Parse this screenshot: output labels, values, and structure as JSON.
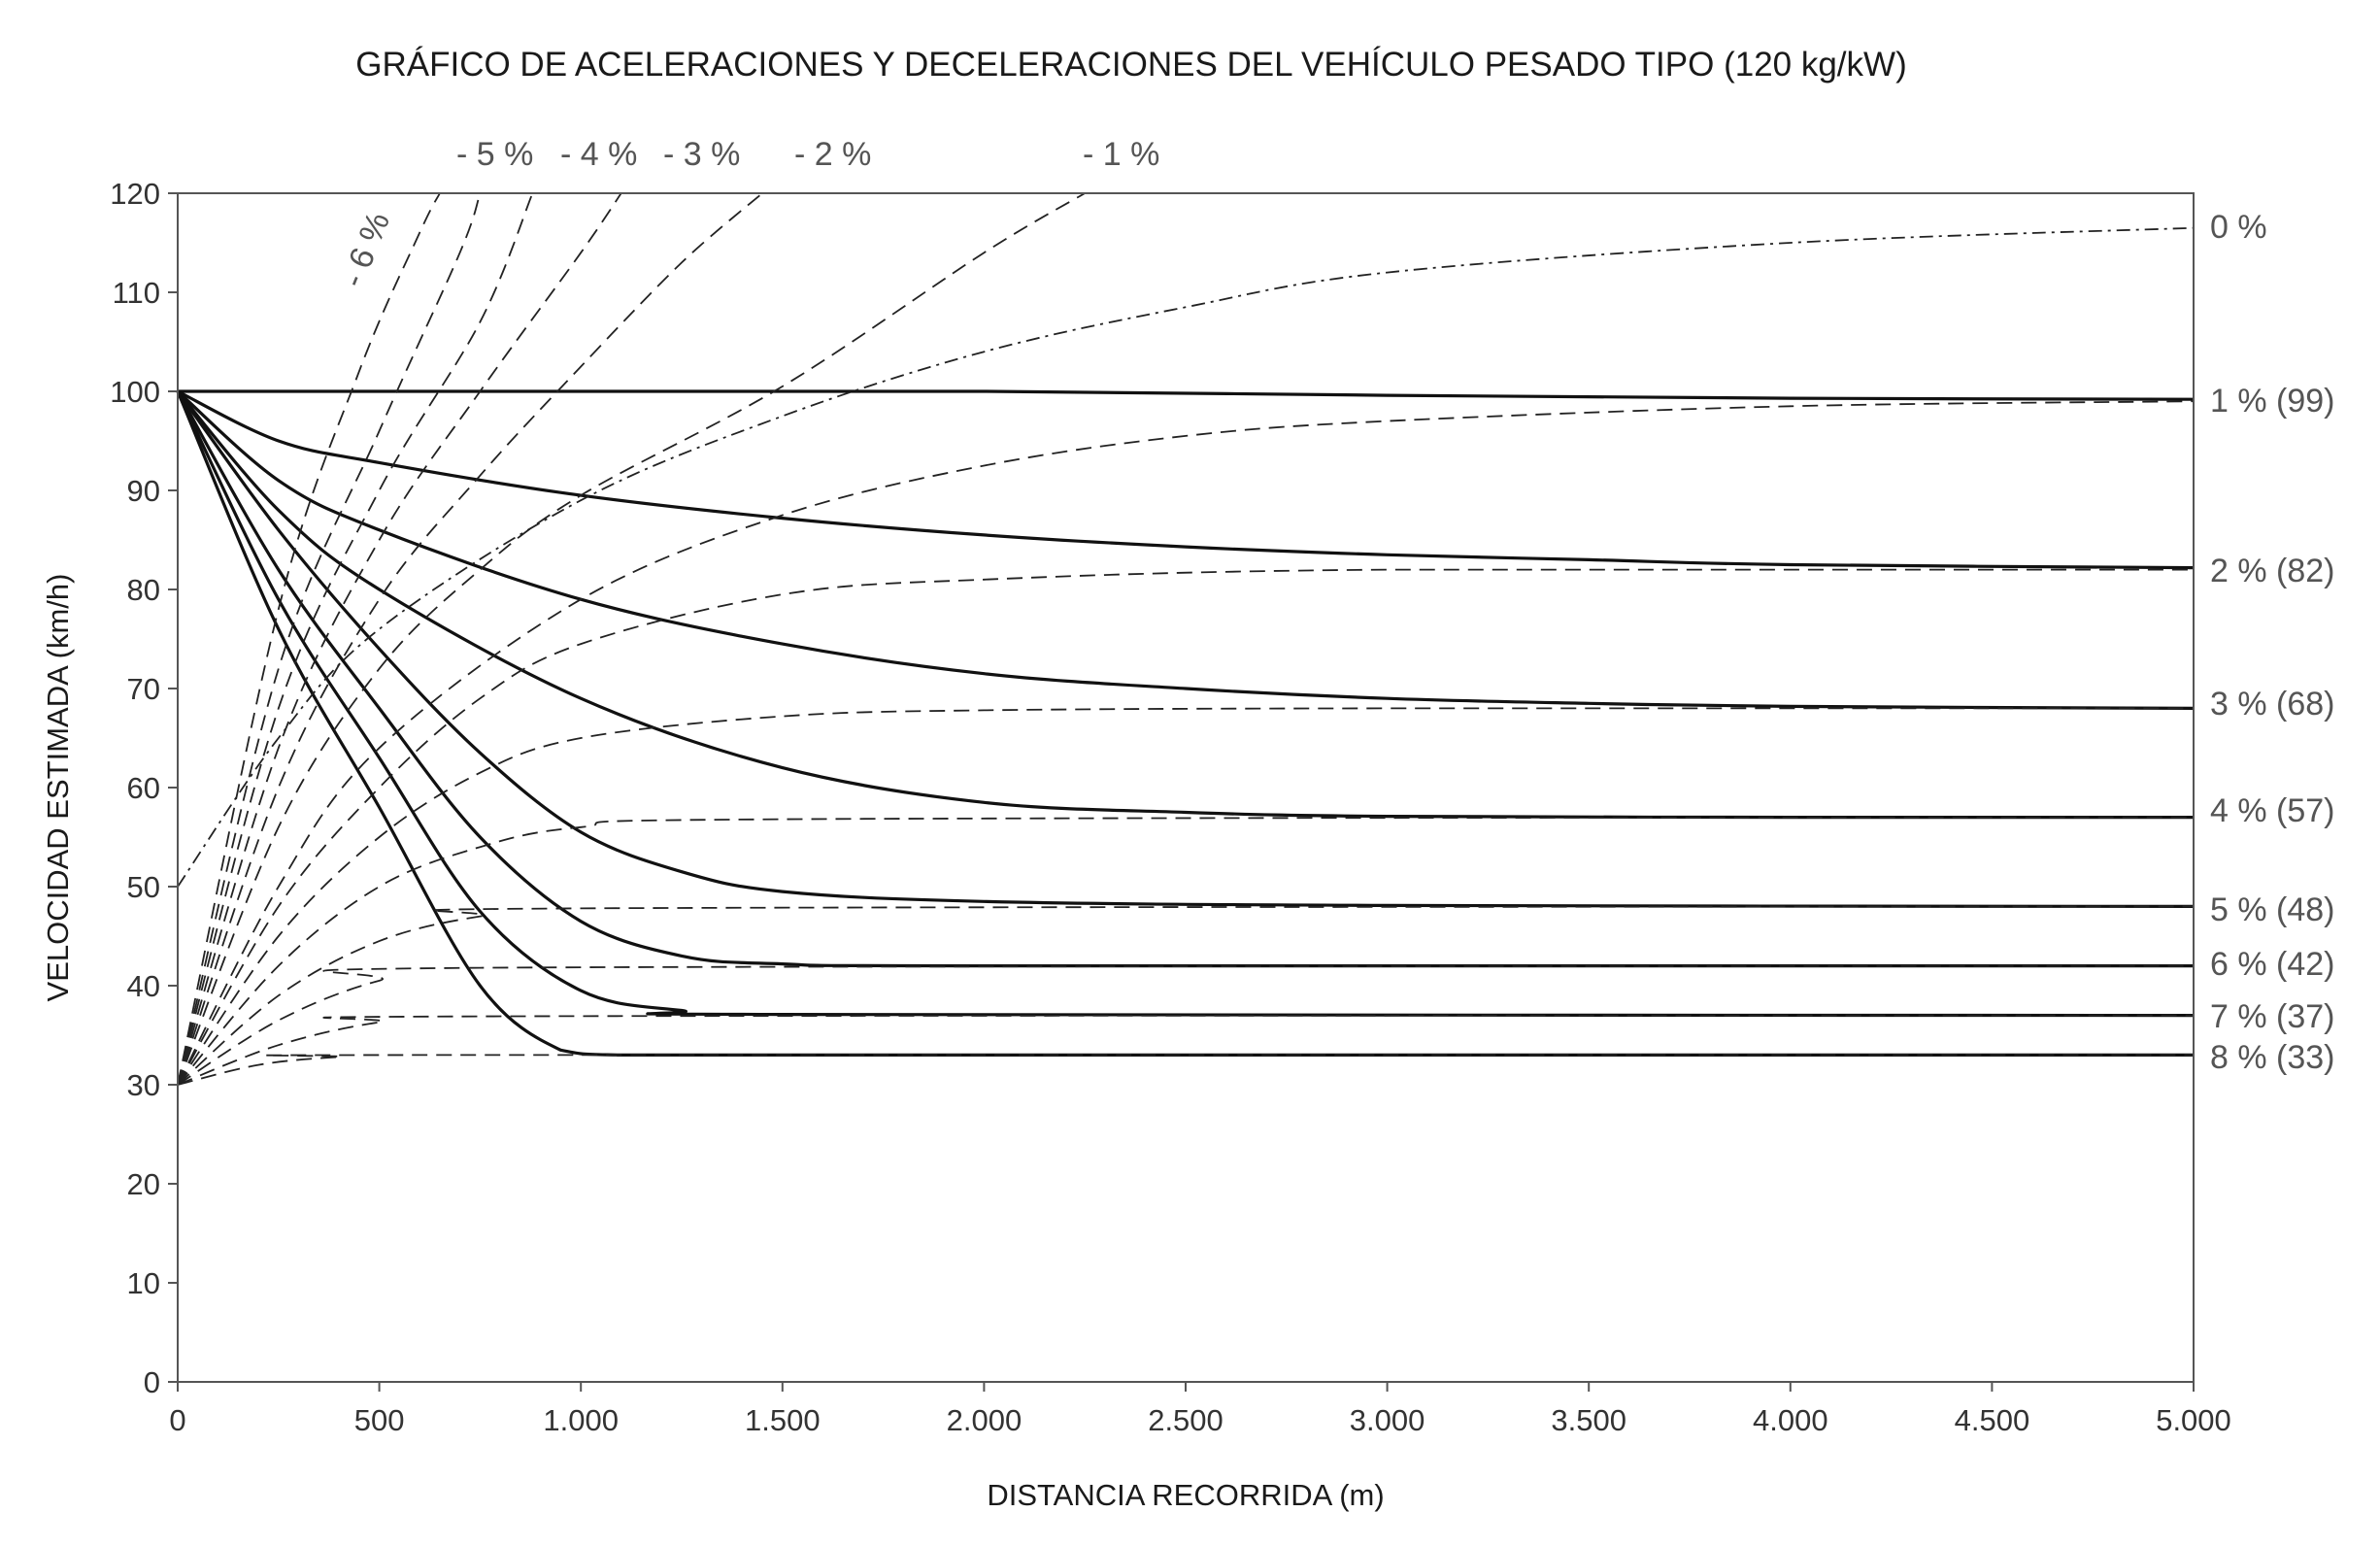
{
  "chart_data": {
    "type": "line",
    "title": "GRÁFICO DE ACELERACIONES Y DECELERACIONES DEL VEHÍCULO PESADO TIPO (120 kg/kW)",
    "xlabel": "DISTANCIA RECORRIDA (m)",
    "ylabel": "VELOCIDAD ESTIMADA (km/h)",
    "xlim": [
      0,
      5000
    ],
    "ylim": [
      0,
      120
    ],
    "x_ticks": [
      0,
      500,
      1000,
      1500,
      2000,
      2500,
      3000,
      3500,
      4000,
      4500,
      5000
    ],
    "x_tick_labels": [
      "0",
      "500",
      "1.000",
      "1.500",
      "2.000",
      "2.500",
      "3.000",
      "3.500",
      "4.000",
      "4.500",
      "5.000"
    ],
    "y_ticks": [
      0,
      10,
      20,
      30,
      40,
      50,
      60,
      70,
      80,
      90,
      100,
      110,
      120
    ],
    "y_tick_labels": [
      "0",
      "10",
      "20",
      "30",
      "40",
      "50",
      "60",
      "70",
      "80",
      "90",
      "100",
      "110",
      "120"
    ],
    "grid": false,
    "legend": "none",
    "series": [
      {
        "label": "1 % (99)",
        "style": "solid",
        "start_speed": 100,
        "equilibrium": 99,
        "x": [
          0,
          500,
          1000,
          2000,
          3000,
          4000,
          5000
        ],
        "y": [
          100,
          100,
          100,
          100,
          99.6,
          99.3,
          99.2
        ]
      },
      {
        "label": "2 % (82)",
        "style": "solid",
        "start_speed": 100,
        "equilibrium": 82,
        "x": [
          0,
          250,
          500,
          1000,
          1500,
          2000,
          2500,
          3000,
          3500,
          4000,
          5000
        ],
        "y": [
          100,
          95,
          92.8,
          89.5,
          87.2,
          85.5,
          84.3,
          83.5,
          83,
          82.5,
          82.2
        ]
      },
      {
        "label": "3 % (68)",
        "style": "solid",
        "start_speed": 100,
        "equilibrium": 68,
        "x": [
          0,
          250,
          500,
          1000,
          1500,
          2000,
          2500,
          3000,
          3500,
          4000,
          5000
        ],
        "y": [
          100,
          91,
          86,
          79,
          74.5,
          71.5,
          70,
          69,
          68.5,
          68.2,
          68
        ]
      },
      {
        "label": "4 % (57)",
        "style": "solid",
        "start_speed": 100,
        "equilibrium": 57,
        "x": [
          0,
          250,
          500,
          1000,
          1500,
          2000,
          2500,
          3000,
          4000,
          5000
        ],
        "y": [
          100,
          88,
          80,
          69,
          62,
          58.5,
          57.5,
          57.1,
          57,
          57
        ]
      },
      {
        "label": "5 % (48)",
        "style": "solid",
        "start_speed": 100,
        "equilibrium": 48,
        "x": [
          0,
          250,
          500,
          750,
          1000,
          1250,
          1500,
          2000,
          3000,
          5000
        ],
        "y": [
          100,
          86,
          74,
          63.5,
          55.5,
          51.5,
          49.5,
          48.5,
          48.1,
          48
        ]
      },
      {
        "label": "6 % (42)",
        "style": "solid",
        "start_speed": 100,
        "equilibrium": 42,
        "x": [
          0,
          250,
          500,
          750,
          1000,
          1250,
          1500,
          2000,
          5000
        ],
        "y": [
          100,
          82,
          68,
          55,
          46.5,
          43,
          42.2,
          42,
          42
        ]
      },
      {
        "label": "7 % (37)",
        "style": "solid",
        "start_speed": 100,
        "equilibrium": 37,
        "x": [
          0,
          250,
          500,
          750,
          1000,
          1250,
          1500,
          5000
        ],
        "y": [
          100,
          79,
          63,
          47.5,
          39.5,
          37.5,
          37.1,
          37
        ]
      },
      {
        "label": "8 % (33)",
        "style": "solid",
        "start_speed": 100,
        "equilibrium": 33,
        "x": [
          0,
          250,
          500,
          750,
          950,
          1100,
          1500,
          5000
        ],
        "y": [
          100,
          76,
          58,
          40,
          33.5,
          33,
          33,
          33
        ]
      },
      {
        "label": "0 %",
        "style": "dash-dot",
        "start_speed": 50,
        "x": [
          0,
          250,
          500,
          1000,
          1500,
          2000,
          2500,
          3000,
          4000,
          5000
        ],
        "y": [
          50,
          65,
          76,
          89,
          97.5,
          104,
          108.5,
          112,
          115,
          116.5
        ]
      },
      {
        "label": "1 % (99)",
        "style": "dashed",
        "start_speed": 30,
        "x": [
          0,
          250,
          500,
          1000,
          1500,
          2000,
          2500,
          3000,
          4000,
          5000
        ],
        "y": [
          30,
          50,
          64,
          79,
          87.5,
          92.5,
          95.5,
          97,
          98.5,
          99
        ]
      },
      {
        "label": "2 % (82)",
        "style": "dashed",
        "start_speed": 30,
        "x": [
          0,
          250,
          500,
          750,
          1000,
          1500,
          2000,
          3000,
          5000
        ],
        "y": [
          30,
          48,
          60,
          69,
          74.5,
          79.5,
          81,
          82,
          82
        ]
      },
      {
        "label": "3 % (68)",
        "style": "dashed",
        "start_speed": 30,
        "x": [
          0,
          250,
          500,
          750,
          1000,
          1500,
          2000,
          3000,
          5000
        ],
        "y": [
          30,
          45,
          55,
          61.5,
          65,
          67.2,
          67.8,
          68,
          68
        ]
      },
      {
        "label": "4 % (57)",
        "style": "dashed",
        "start_speed": 30,
        "x": [
          0,
          250,
          500,
          750,
          1000,
          1500,
          5000
        ],
        "y": [
          30,
          42,
          50,
          54,
          56,
          56.8,
          57
        ]
      },
      {
        "label": "5 % (48)",
        "style": "dashed",
        "start_speed": 30,
        "x": [
          0,
          250,
          500,
          750,
          1000,
          5000
        ],
        "y": [
          30,
          39,
          44.5,
          47,
          47.8,
          48
        ]
      },
      {
        "label": "6 % (42)",
        "style": "dashed",
        "start_speed": 30,
        "x": [
          0,
          250,
          500,
          750,
          5000
        ],
        "y": [
          30,
          36.5,
          40.5,
          41.8,
          42
        ]
      },
      {
        "label": "7 % (37)",
        "style": "dashed",
        "start_speed": 30,
        "x": [
          0,
          250,
          500,
          750,
          5000
        ],
        "y": [
          30,
          34,
          36.3,
          36.9,
          37
        ]
      },
      {
        "label": "8 % (33)",
        "style": "dashed",
        "start_speed": 30,
        "x": [
          0,
          200,
          400,
          600,
          5000
        ],
        "y": [
          30,
          32,
          32.8,
          33,
          33
        ]
      },
      {
        "label": "- 1 %",
        "style": "dashed",
        "start_speed": 30,
        "x": [
          0,
          250,
          500,
          750,
          1000,
          1500,
          2000,
          2250
        ],
        "y": [
          30,
          56,
          72,
          82,
          89.5,
          100.5,
          114,
          120
        ]
      },
      {
        "label": "- 2 %",
        "style": "dashed",
        "start_speed": 30,
        "x": [
          0,
          250,
          500,
          750,
          1000,
          1250,
          1450
        ],
        "y": [
          30,
          60,
          79,
          91.5,
          102.5,
          113,
          120
        ]
      },
      {
        "label": "- 3 %",
        "style": "dashed",
        "start_speed": 30,
        "x": [
          0,
          250,
          500,
          750,
          1000,
          1100
        ],
        "y": [
          30,
          64,
          85,
          100,
          114,
          120
        ]
      },
      {
        "label": "- 4 %",
        "style": "dashed",
        "start_speed": 30,
        "x": [
          0,
          250,
          500,
          750,
          880
        ],
        "y": [
          30,
          68,
          90,
          107,
          120
        ]
      },
      {
        "label": "- 5 %",
        "style": "dashed",
        "start_speed": 30,
        "x": [
          0,
          250,
          500,
          700,
          750
        ],
        "y": [
          30,
          72,
          96,
          114,
          120
        ]
      },
      {
        "label": "- 6 %",
        "style": "dashed",
        "start_speed": 30,
        "x": [
          0,
          250,
          450,
          600,
          650
        ],
        "y": [
          30,
          78,
          102,
          116,
          120
        ]
      }
    ],
    "annotations": {
      "right": [
        "0 %",
        "1 % (99)",
        "2 % (82)",
        "3 % (68)",
        "4 % (57)",
        "5 % (48)",
        "6 % (42)",
        "7 % (37)",
        "8 % (33)"
      ],
      "top": [
        "- 5 %",
        "- 4 %",
        "- 3 %",
        "- 2 %",
        "- 1 %"
      ],
      "rotated": "- 6 %"
    }
  }
}
